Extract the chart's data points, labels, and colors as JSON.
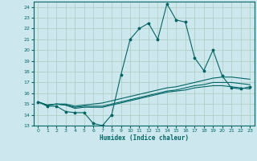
{
  "xlabel": "Humidex (Indice chaleur)",
  "ylabel": "",
  "bg_color": "#cce8ee",
  "grid_color": "#aaccbb",
  "line_color": "#006666",
  "xlim": [
    -0.5,
    23.5
  ],
  "ylim": [
    13,
    24.5
  ],
  "yticks": [
    13,
    14,
    15,
    16,
    17,
    18,
    19,
    20,
    21,
    22,
    23,
    24
  ],
  "xticks": [
    0,
    1,
    2,
    3,
    4,
    5,
    6,
    7,
    8,
    9,
    10,
    11,
    12,
    13,
    14,
    15,
    16,
    17,
    18,
    19,
    20,
    21,
    22,
    23
  ],
  "lines": [
    {
      "x": [
        0,
        1,
        2,
        3,
        4,
        5,
        6,
        7,
        8,
        9,
        10,
        11,
        12,
        13,
        14,
        15,
        16,
        17,
        18,
        19,
        20,
        21,
        22,
        23
      ],
      "y": [
        15.2,
        14.8,
        14.8,
        14.3,
        14.2,
        14.2,
        13.2,
        13.0,
        14.0,
        17.7,
        21.0,
        22.0,
        22.5,
        21.0,
        24.3,
        22.8,
        22.6,
        19.3,
        18.1,
        20.0,
        17.6,
        16.5,
        16.4,
        16.6
      ],
      "marker": true
    },
    {
      "x": [
        0,
        1,
        2,
        3,
        4,
        5,
        6,
        7,
        8,
        9,
        10,
        11,
        12,
        13,
        14,
        15,
        16,
        17,
        18,
        19,
        20,
        21,
        22,
        23
      ],
      "y": [
        15.2,
        14.9,
        15.0,
        15.0,
        14.8,
        14.9,
        15.0,
        15.1,
        15.3,
        15.5,
        15.7,
        15.9,
        16.1,
        16.3,
        16.5,
        16.6,
        16.8,
        17.0,
        17.2,
        17.4,
        17.5,
        17.5,
        17.4,
        17.3
      ],
      "marker": false
    },
    {
      "x": [
        0,
        1,
        2,
        3,
        4,
        5,
        6,
        7,
        8,
        9,
        10,
        11,
        12,
        13,
        14,
        15,
        16,
        17,
        18,
        19,
        20,
        21,
        22,
        23
      ],
      "y": [
        15.2,
        14.9,
        15.0,
        14.9,
        14.7,
        14.8,
        14.8,
        14.8,
        15.0,
        15.2,
        15.4,
        15.6,
        15.8,
        16.0,
        16.2,
        16.3,
        16.5,
        16.7,
        16.8,
        17.0,
        17.0,
        17.0,
        16.9,
        16.8
      ],
      "marker": false
    },
    {
      "x": [
        0,
        1,
        2,
        3,
        4,
        5,
        6,
        7,
        8,
        9,
        10,
        11,
        12,
        13,
        14,
        15,
        16,
        17,
        18,
        19,
        20,
        21,
        22,
        23
      ],
      "y": [
        15.2,
        14.9,
        15.0,
        14.9,
        14.6,
        14.7,
        14.7,
        14.7,
        14.9,
        15.1,
        15.3,
        15.5,
        15.7,
        15.9,
        16.1,
        16.2,
        16.3,
        16.5,
        16.6,
        16.7,
        16.7,
        16.6,
        16.5,
        16.4
      ],
      "marker": false
    }
  ]
}
